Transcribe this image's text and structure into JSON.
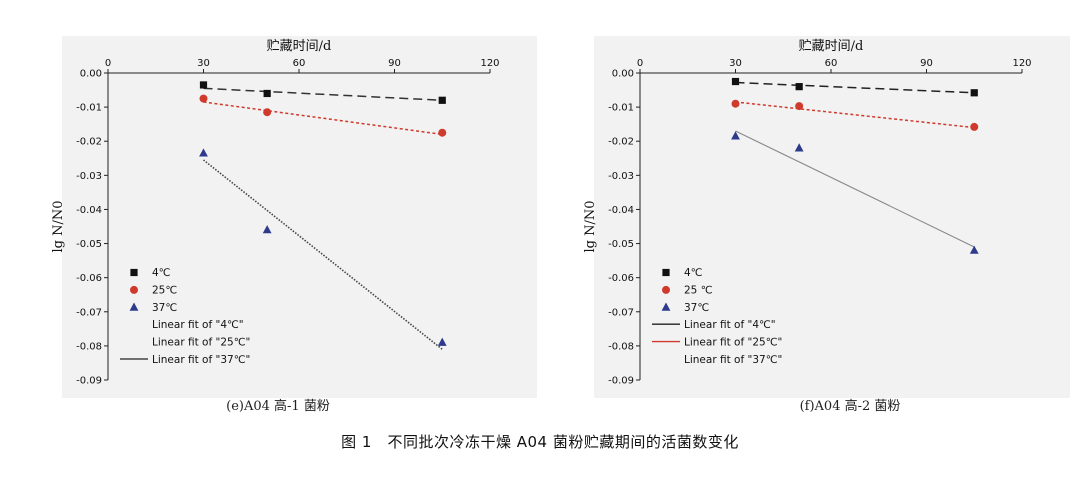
{
  "figure_caption": "图 1　不同批次冷冻干燥 A04 菌粉贮藏期间的活菌数变化",
  "colors": {
    "s4": "#111111",
    "s25": "#d03a2c",
    "s37": "#2e3a8c",
    "fit4_e": "#333333",
    "fit25_e": "#d03a2c",
    "fit37_e": "#444444",
    "fit4_f": "#222222",
    "fit25_f": "#d03a2c",
    "fit37_f": "#888888"
  },
  "chart_data": [
    {
      "type": "scatter",
      "panel_caption": "(e)A04 高-1 菌粉",
      "xlabel": "贮藏时间/d",
      "ylabel": "lg N/N0",
      "xlim": [
        0,
        120
      ],
      "ylim": [
        -0.09,
        0
      ],
      "x_ticks": [
        "0",
        "30",
        "60",
        "90",
        "120"
      ],
      "y_ticks": [
        "0.00",
        "-0.01",
        "-0.02",
        "-0.03",
        "-0.04",
        "-0.05",
        "-0.06",
        "-0.07",
        "-0.08",
        "-0.09"
      ],
      "x_axis_position": "top",
      "legend_position": "bottom-left",
      "series": [
        {
          "name": "4℃",
          "marker": "square",
          "x": [
            30,
            50,
            105
          ],
          "y": [
            -0.0035,
            -0.006,
            -0.008
          ],
          "fit": {
            "name": "Linear fit of \"4℃\"",
            "x": [
              30,
              105
            ],
            "y": [
              -0.0045,
              -0.008
            ],
            "style": "dashed"
          }
        },
        {
          "name": "25℃",
          "marker": "circle",
          "x": [
            30,
            50,
            105
          ],
          "y": [
            -0.0075,
            -0.0115,
            -0.0175
          ],
          "fit": {
            "name": "Linear fit of \"25℃\"",
            "x": [
              30,
              105
            ],
            "y": [
              -0.0085,
              -0.018
            ],
            "style": "dotted"
          }
        },
        {
          "name": "37℃",
          "marker": "triangle",
          "x": [
            30,
            50,
            105
          ],
          "y": [
            -0.0235,
            -0.046,
            -0.079
          ],
          "fit": {
            "name": "Linear fit of \"37℃\"",
            "x": [
              30,
              105
            ],
            "y": [
              -0.0255,
              -0.081
            ],
            "style": "dotted-fine"
          }
        }
      ]
    },
    {
      "type": "scatter",
      "panel_caption": "(f)A04 高-2 菌粉",
      "xlabel": "贮藏时间/d",
      "ylabel": "lg N/N0",
      "xlim": [
        0,
        120
      ],
      "ylim": [
        -0.09,
        0
      ],
      "x_ticks": [
        "0",
        "30",
        "60",
        "90",
        "120"
      ],
      "y_ticks": [
        "0.00",
        "-0.01",
        "-0.02",
        "-0.03",
        "-0.04",
        "-0.05",
        "-0.06",
        "-0.07",
        "-0.08",
        "-0.09"
      ],
      "x_axis_position": "top",
      "legend_position": "bottom-left",
      "series": [
        {
          "name": "4℃",
          "marker": "square",
          "x": [
            30,
            50,
            105
          ],
          "y": [
            -0.0025,
            -0.004,
            -0.0058
          ],
          "fit": {
            "name": "Linear fit of \"4℃\"",
            "x": [
              30,
              105
            ],
            "y": [
              -0.0028,
              -0.0058
            ],
            "style": "dashed"
          }
        },
        {
          "name": "25 ℃",
          "marker": "circle",
          "x": [
            30,
            50,
            105
          ],
          "y": [
            -0.009,
            -0.0097,
            -0.0158
          ],
          "fit": {
            "name": "Linear fit of \"25℃\"",
            "x": [
              30,
              105
            ],
            "y": [
              -0.0085,
              -0.016
            ],
            "style": "dotted"
          }
        },
        {
          "name": "37℃",
          "marker": "triangle",
          "x": [
            30,
            50,
            105
          ],
          "y": [
            -0.0185,
            -0.022,
            -0.052
          ],
          "fit": {
            "name": "Linear fit of \"37℃\"",
            "x": [
              30,
              105
            ],
            "y": [
              -0.017,
              -0.051
            ],
            "style": "solid-thin"
          }
        }
      ]
    }
  ]
}
